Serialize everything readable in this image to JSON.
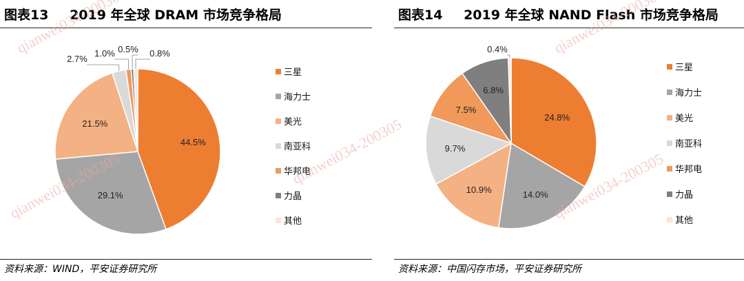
{
  "panels": [
    {
      "fig_no": "图表13",
      "title": "2019 年全球 DRAM 市场竞争格局",
      "source": "资料来源：WIND，平安证券研究所"
    },
    {
      "fig_no": "图表14",
      "title": "2019 年全球 NAND Flash 市场竞争格局",
      "source": "资料来源：中国闪存市场，平安证券研究所"
    }
  ],
  "watermark": "qianwei034-200305",
  "chart_data": [
    {
      "type": "pie",
      "title": "2019 年全球 DRAM 市场竞争格局",
      "legend_position": "right",
      "categories": [
        "三星",
        "海力士",
        "美光",
        "南亚科",
        "华邦电",
        "力晶",
        "其他"
      ],
      "values": [
        44.5,
        29.1,
        21.5,
        2.7,
        1.0,
        0.5,
        0.8
      ],
      "value_labels": [
        "44.5%",
        "29.1%",
        "21.5%",
        "2.7%",
        "1.0%",
        "0.5%",
        "0.8%"
      ],
      "colors": [
        "#ED7D31",
        "#A5A5A5",
        "#F4B183",
        "#D9D9D9",
        "#F0995A",
        "#7F7F7F",
        "#FBE5D6"
      ]
    },
    {
      "type": "pie",
      "title": "2019 年全球 NAND Flash 市场竞争格局",
      "legend_position": "right",
      "categories": [
        "三星",
        "海力士",
        "美光",
        "南亚科",
        "华邦电",
        "力晶",
        "其他"
      ],
      "values": [
        24.8,
        14.0,
        10.9,
        9.7,
        7.5,
        6.8,
        0.4
      ],
      "value_labels": [
        "24.8%",
        "14.0%",
        "10.9%",
        "9.7%",
        "7.5%",
        "6.8%",
        "0.4%"
      ],
      "colors": [
        "#ED7D31",
        "#A5A5A5",
        "#F4B183",
        "#D9D9D9",
        "#F0995A",
        "#7F7F7F",
        "#FBE5D6"
      ]
    }
  ]
}
